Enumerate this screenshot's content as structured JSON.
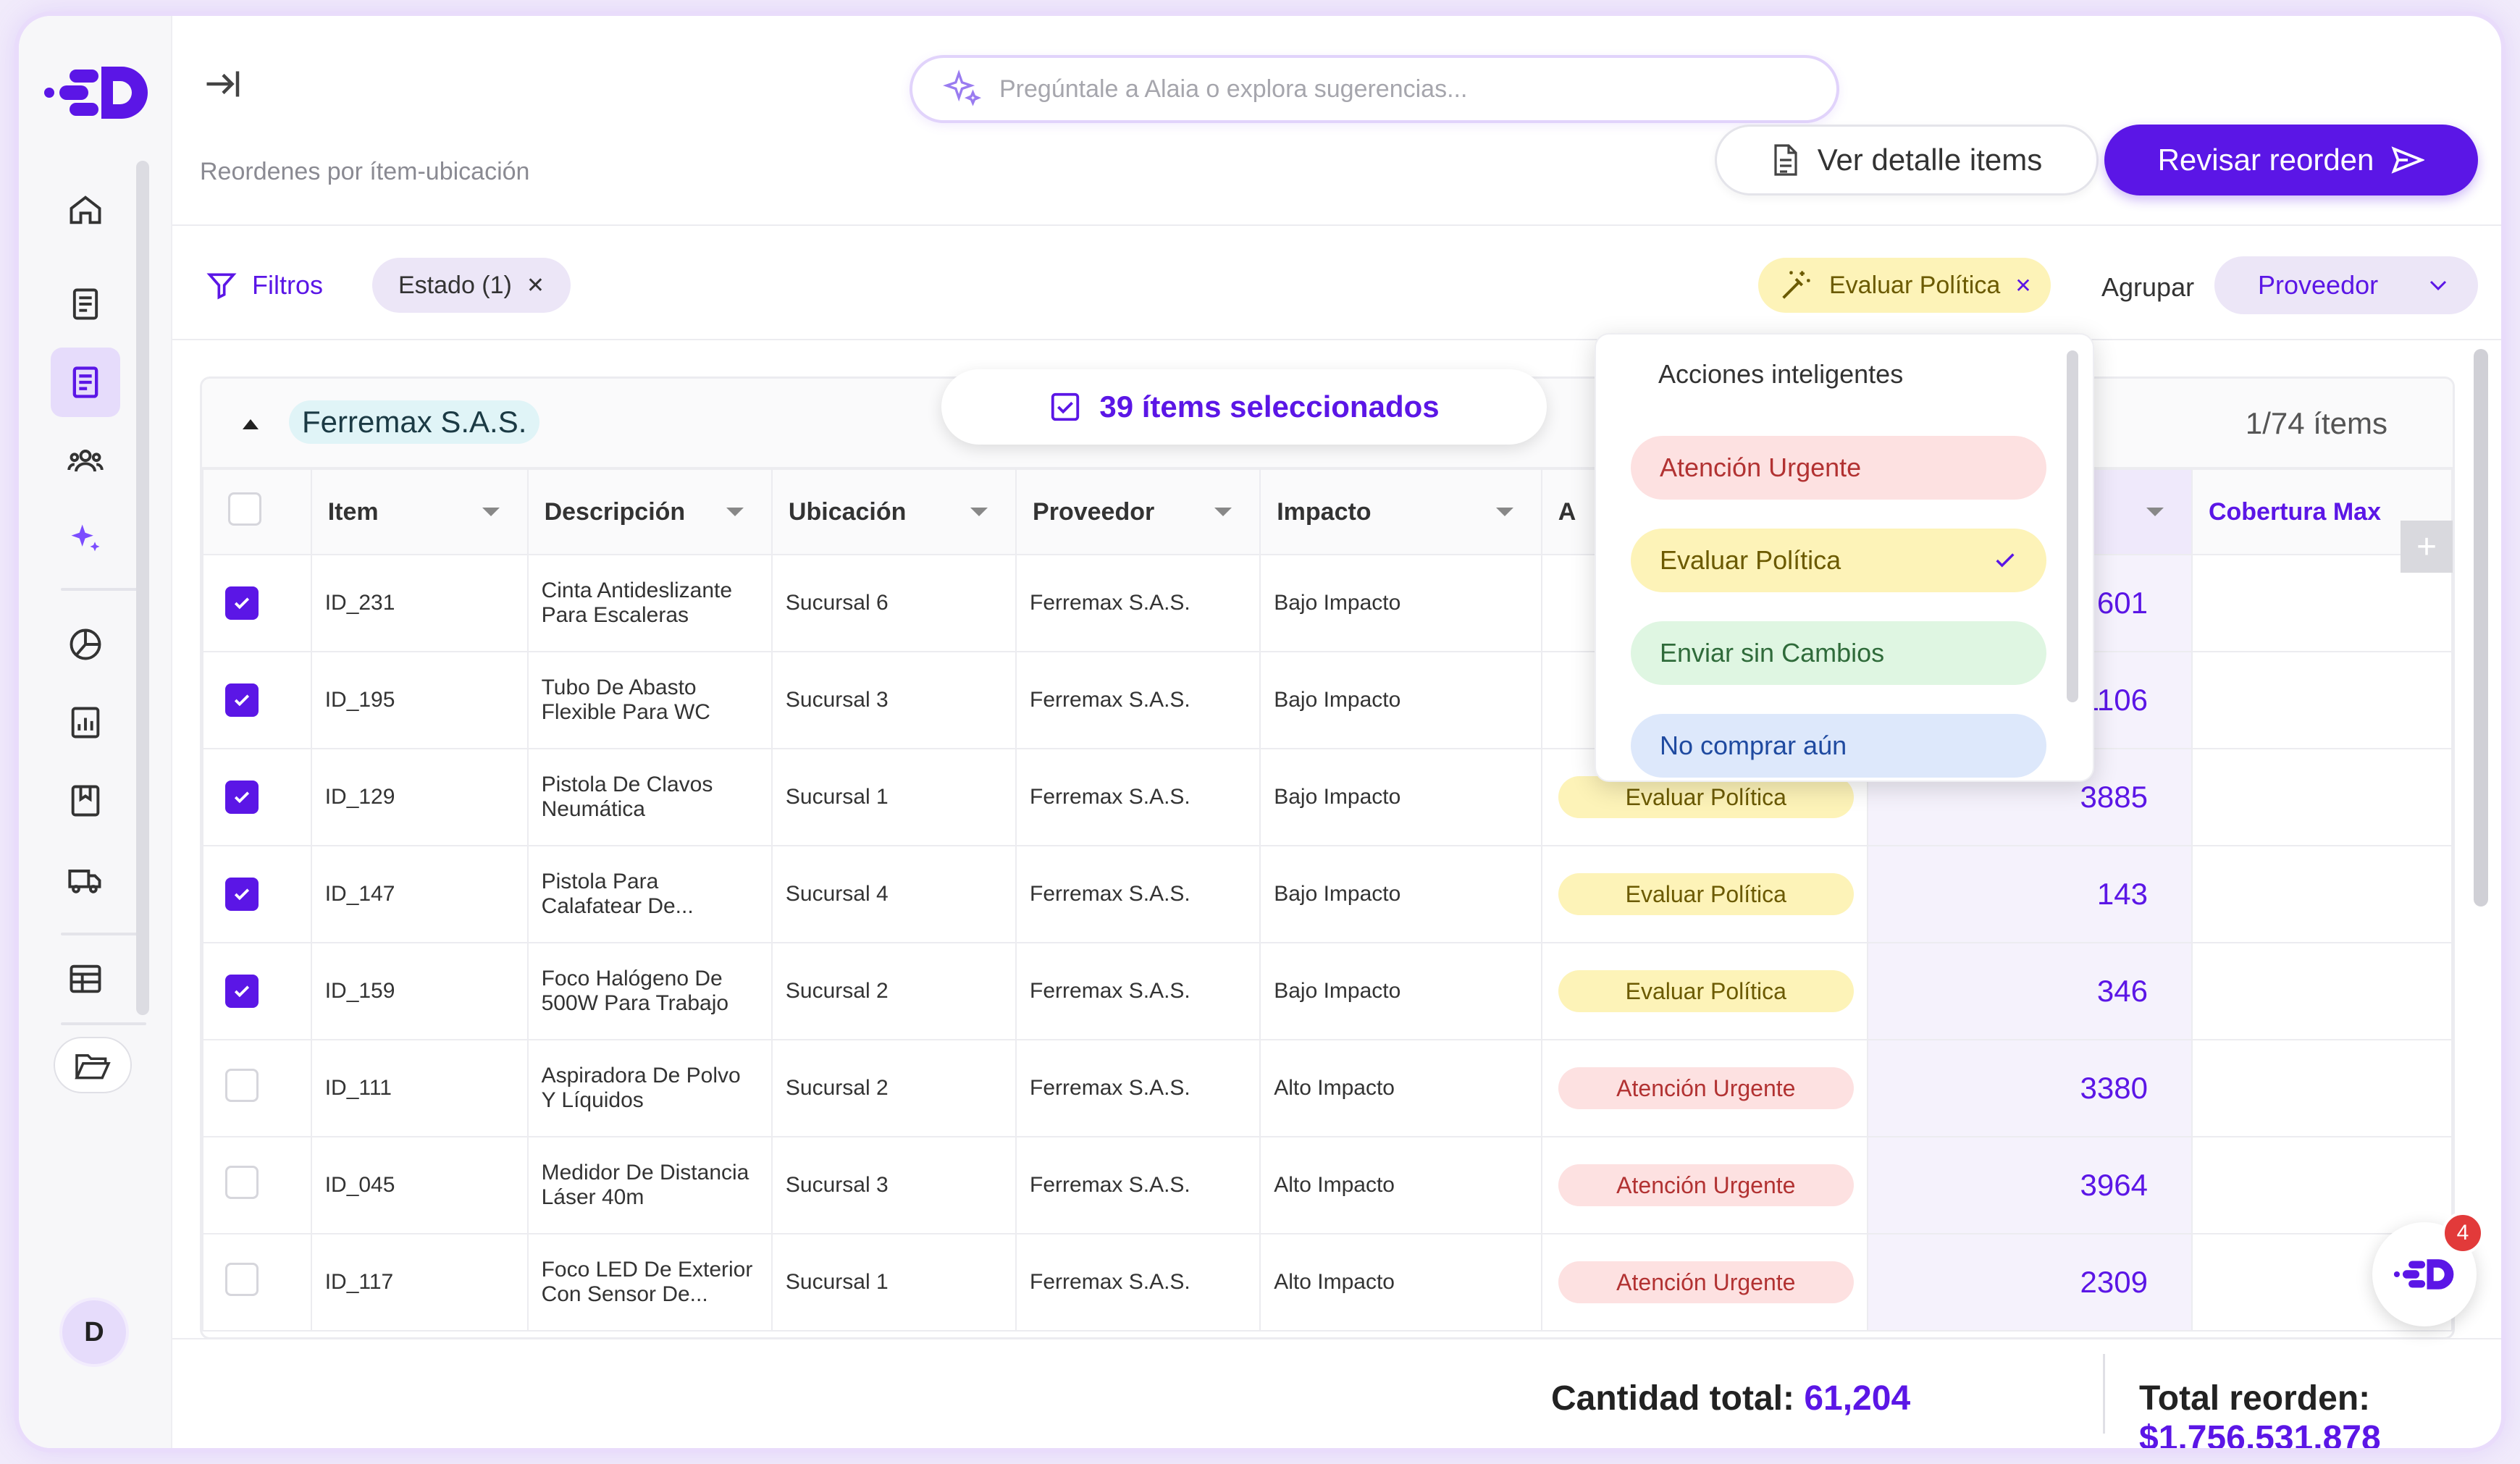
{
  "search": {
    "placeholder": "Pregúntale a Alaia o explora sugerencias..."
  },
  "header": {
    "subtitle": "Reordenes por ítem-ubicación",
    "detail_button": "Ver detalle items",
    "review_button": "Revisar reorden"
  },
  "filters": {
    "label": "Filtros",
    "estado_chip": "Estado (1)",
    "politica_chip": "Evaluar Política",
    "agrupar_label": "Agrupar",
    "agrupar_value": "Proveedor"
  },
  "group": {
    "name": "Ferremax S.A.S.",
    "count": "1/74 ítems"
  },
  "selection": {
    "text": "39 ítems seleccionados"
  },
  "columns": {
    "item": "Item",
    "descripcion": "Descripción",
    "ubicacion": "Ubicación",
    "proveedor": "Proveedor",
    "impacto": "Impacto",
    "accion": "A",
    "cobertura": "Cobertura Max"
  },
  "rows": [
    {
      "id": "ID_231",
      "desc": "Cinta Antideslizante Para Escaleras",
      "ubic": "Sucursal 6",
      "prov": "Ferremax S.A.S.",
      "impacto": "Bajo Impacto",
      "accion": "",
      "tipo": "none",
      "qty": "601",
      "checked": true
    },
    {
      "id": "ID_195",
      "desc": "Tubo De Abasto Flexible Para WC",
      "ubic": "Sucursal 3",
      "prov": "Ferremax S.A.S.",
      "impacto": "Bajo Impacto",
      "accion": "",
      "tipo": "none",
      "qty": "1106",
      "checked": true
    },
    {
      "id": "ID_129",
      "desc": "Pistola De Clavos Neumática",
      "ubic": "Sucursal 1",
      "prov": "Ferremax S.A.S.",
      "impacto": "Bajo Impacto",
      "accion": "Evaluar Política",
      "tipo": "yellow",
      "qty": "3885",
      "checked": true
    },
    {
      "id": "ID_147",
      "desc": "Pistola Para Calafatear De...",
      "ubic": "Sucursal 4",
      "prov": "Ferremax S.A.S.",
      "impacto": "Bajo Impacto",
      "accion": "Evaluar Política",
      "tipo": "yellow",
      "qty": "143",
      "checked": true
    },
    {
      "id": "ID_159",
      "desc": "Foco Halógeno De 500W Para Trabajo",
      "ubic": "Sucursal 2",
      "prov": "Ferremax S.A.S.",
      "impacto": "Bajo Impacto",
      "accion": "Evaluar Política",
      "tipo": "yellow",
      "qty": "346",
      "checked": true
    },
    {
      "id": "ID_111",
      "desc": "Aspiradora De Polvo Y Líquidos",
      "ubic": "Sucursal 2",
      "prov": "Ferremax S.A.S.",
      "impacto": "Alto Impacto",
      "accion": "Atención Urgente",
      "tipo": "red",
      "qty": "3380",
      "checked": false
    },
    {
      "id": "ID_045",
      "desc": "Medidor De Distancia Láser 40m",
      "ubic": "Sucursal 3",
      "prov": "Ferremax S.A.S.",
      "impacto": "Alto Impacto",
      "accion": "Atención Urgente",
      "tipo": "red",
      "qty": "3964",
      "checked": false
    },
    {
      "id": "ID_117",
      "desc": "Foco LED De Exterior Con Sensor De...",
      "ubic": "Sucursal 1",
      "prov": "Ferremax S.A.S.",
      "impacto": "Alto Impacto",
      "accion": "Atención Urgente",
      "tipo": "red",
      "qty": "2309",
      "checked": false
    }
  ],
  "menu": {
    "title": "Acciones inteligentes",
    "items": [
      {
        "label": "Atención Urgente",
        "bg": "#fde1e1",
        "color": "#b23232"
      },
      {
        "label": "Evaluar Política",
        "bg": "#fdf3b8",
        "color": "#6b5a00"
      },
      {
        "label": "Enviar sin Cambios",
        "bg": "#dff6e2",
        "color": "#2f6b3a"
      },
      {
        "label": "No comprar aún",
        "bg": "#dde8fb",
        "color": "#1f4aa0"
      }
    ]
  },
  "totals": {
    "cantidad_label": "Cantidad total:",
    "cantidad_value": "61,204",
    "reorden_label": "Total reorden:",
    "reorden_value": "$1,756,531.878"
  },
  "user": {
    "initial": "D"
  },
  "chat": {
    "badge": "4"
  },
  "colors": {
    "accent": "#5b16e6"
  }
}
